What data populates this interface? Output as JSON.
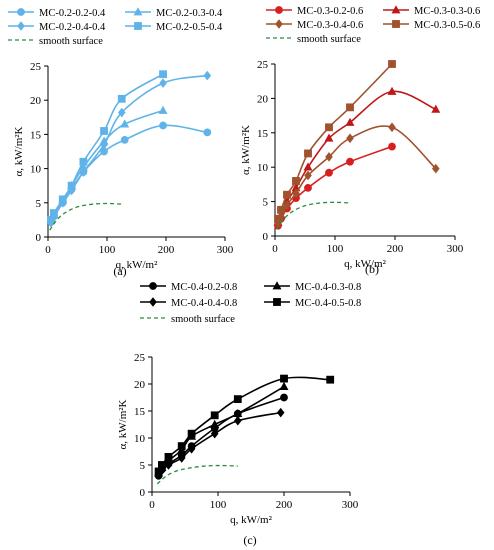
{
  "chart_data": [
    {
      "type": "line",
      "panel_label": "(a)",
      "xlabel": "q, kW/m²",
      "ylabel": "α, kW/m²K",
      "xlim": [
        0,
        300
      ],
      "ylim": [
        0,
        25
      ],
      "xticks": [
        0,
        100,
        200,
        300
      ],
      "yticks": [
        0,
        5,
        10,
        15,
        20,
        25
      ],
      "grid": false,
      "legend_position": "top",
      "series": [
        {
          "name": "MC-0.2-0.2-0.4",
          "marker": "circle",
          "color": "#5fb3e8",
          "x": [
            5,
            10,
            25,
            40,
            60,
            95,
            130,
            195,
            270
          ],
          "y": [
            2.2,
            3.0,
            5.0,
            7.0,
            9.5,
            12.5,
            14.2,
            16.3,
            15.3
          ]
        },
        {
          "name": "MC-0.2-0.3-0.4",
          "marker": "triangle",
          "color": "#5fb3e8",
          "x": [
            5,
            10,
            25,
            40,
            60,
            95,
            130,
            195
          ],
          "y": [
            2.4,
            3.2,
            5.4,
            7.5,
            10.2,
            14.0,
            16.5,
            18.5
          ]
        },
        {
          "name": "MC-0.2-0.4-0.4",
          "marker": "diamond",
          "color": "#5fb3e8",
          "x": [
            5,
            10,
            25,
            40,
            60,
            95,
            125,
            195,
            270
          ],
          "y": [
            2.1,
            3.0,
            5.0,
            6.8,
            9.5,
            13.5,
            18.2,
            22.5,
            23.6
          ]
        },
        {
          "name": "MC-0.2-0.5-0.4",
          "marker": "square",
          "color": "#5fb3e8",
          "x": [
            5,
            10,
            25,
            40,
            60,
            95,
            125,
            195
          ],
          "y": [
            2.5,
            3.5,
            5.5,
            7.5,
            11.0,
            15.5,
            20.2,
            23.8
          ]
        },
        {
          "name": "smooth surface",
          "marker": "none",
          "color": "#2e8b3e",
          "dashed": true,
          "x": [
            3,
            15,
            30,
            50,
            75,
            100,
            125
          ],
          "y": [
            1.0,
            2.5,
            3.6,
            4.4,
            4.8,
            4.9,
            4.8
          ]
        }
      ]
    },
    {
      "type": "line",
      "panel_label": "(b)",
      "xlabel": "q, kW/m²",
      "ylabel": "α, kW/m²K",
      "xlim": [
        0,
        300
      ],
      "ylim": [
        0,
        25
      ],
      "xticks": [
        0,
        100,
        200,
        300
      ],
      "yticks": [
        0,
        5,
        10,
        15,
        20,
        25
      ],
      "grid": false,
      "legend_position": "top",
      "series": [
        {
          "name": "MC-0.3-0.2-0.6",
          "marker": "circle",
          "color": "#d62020",
          "x": [
            5,
            10,
            20,
            35,
            55,
            90,
            125,
            195
          ],
          "y": [
            1.5,
            2.5,
            4.0,
            5.5,
            7.0,
            9.2,
            10.8,
            13.0
          ]
        },
        {
          "name": "MC-0.3-0.3-0.6",
          "marker": "triangle",
          "color": "#c01818",
          "x": [
            5,
            10,
            20,
            35,
            55,
            90,
            125,
            195,
            268
          ],
          "y": [
            2.0,
            3.0,
            5.0,
            7.0,
            10.0,
            14.2,
            16.5,
            21.0,
            18.4
          ]
        },
        {
          "name": "MC-0.3-0.4-0.6",
          "marker": "diamond",
          "color": "#a0522d",
          "x": [
            5,
            10,
            20,
            35,
            55,
            90,
            125,
            195,
            268
          ],
          "y": [
            1.8,
            2.8,
            4.5,
            6.2,
            8.8,
            11.5,
            14.2,
            15.8,
            9.8
          ]
        },
        {
          "name": "MC-0.3-0.5-0.6",
          "marker": "square",
          "color": "#a0522d",
          "x": [
            5,
            10,
            20,
            35,
            55,
            90,
            125,
            195
          ],
          "y": [
            2.5,
            3.8,
            6.0,
            8.0,
            12.0,
            15.8,
            18.7,
            25.0
          ]
        },
        {
          "name": "smooth surface",
          "marker": "none",
          "color": "#2e8b3e",
          "dashed": true,
          "x": [
            3,
            15,
            30,
            50,
            75,
            100,
            125
          ],
          "y": [
            1.0,
            2.5,
            3.6,
            4.4,
            4.8,
            4.9,
            4.8
          ]
        }
      ]
    },
    {
      "type": "line",
      "panel_label": "(c)",
      "xlabel": "q, kW/m²",
      "ylabel": "α, kW/m²K",
      "xlim": [
        0,
        300
      ],
      "ylim": [
        0,
        25
      ],
      "xticks": [
        0,
        100,
        200,
        300
      ],
      "yticks": [
        0,
        5,
        10,
        15,
        20,
        25
      ],
      "grid": false,
      "legend_position": "top",
      "series": [
        {
          "name": "MC-0.4-0.2-0.8",
          "marker": "circle",
          "color": "#000000",
          "x": [
            10,
            15,
            25,
            45,
            60,
            95,
            130,
            200
          ],
          "y": [
            3.0,
            4.2,
            5.2,
            6.8,
            8.5,
            11.8,
            14.5,
            17.5
          ]
        },
        {
          "name": "MC-0.4-0.3-0.8",
          "marker": "triangle",
          "color": "#000000",
          "x": [
            10,
            15,
            25,
            45,
            60,
            95,
            130,
            200
          ],
          "y": [
            3.5,
            4.5,
            5.8,
            7.8,
            10.3,
            12.5,
            14.5,
            19.5
          ]
        },
        {
          "name": "MC-0.4-0.4-0.8",
          "marker": "diamond",
          "color": "#000000",
          "x": [
            10,
            15,
            25,
            45,
            60,
            95,
            130,
            195
          ],
          "y": [
            3.2,
            4.0,
            5.0,
            6.3,
            8.0,
            10.8,
            13.2,
            14.7
          ]
        },
        {
          "name": "MC-0.4-0.5-0.8",
          "marker": "square",
          "color": "#000000",
          "x": [
            10,
            15,
            25,
            45,
            60,
            95,
            130,
            200,
            270
          ],
          "y": [
            3.8,
            5.0,
            6.5,
            8.5,
            10.8,
            14.2,
            17.2,
            21.0,
            20.8
          ]
        },
        {
          "name": "smooth surface",
          "marker": "none",
          "color": "#2e8b3e",
          "dashed": true,
          "x": [
            8,
            20,
            35,
            55,
            80,
            105,
            130
          ],
          "y": [
            1.5,
            2.8,
            3.8,
            4.4,
            4.8,
            4.9,
            4.8
          ]
        }
      ]
    }
  ]
}
